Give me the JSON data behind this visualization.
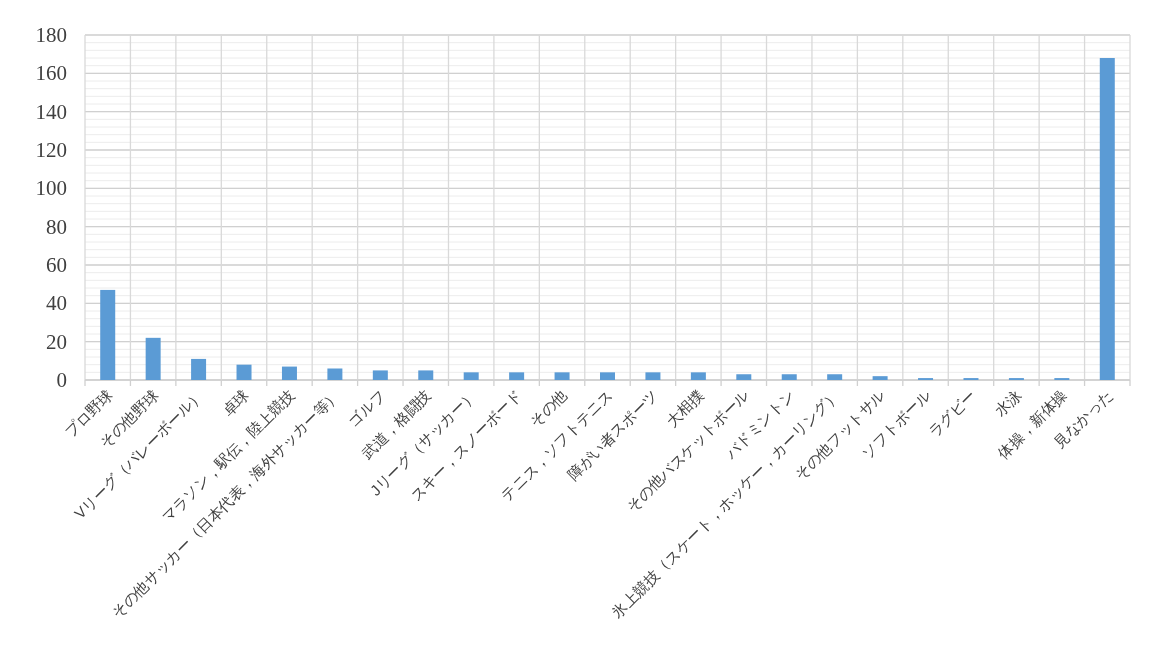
{
  "chart_data": {
    "type": "bar",
    "categories": [
      "プロ野球",
      "その他野球",
      "Vリーグ（バレーボール）",
      "卓球",
      "マラソン，駅伝，陸上競技",
      "その他サッカー（日本代表，海外サッカー等）",
      "ゴルフ",
      "武道，格闘技",
      "Jリーグ（サッカー）",
      "スキー，スノーボード",
      "その他",
      "テニス，ソフトテニス",
      "障がい者スポーツ",
      "大相撲",
      "その他バスケットボール",
      "バドミントン",
      "氷上競技（スケート，ホッケー，カーリング）",
      "その他フットサル",
      "ソフトボール",
      "ラグビー",
      "水泳",
      "体操，新体操",
      "見なかった"
    ],
    "values": [
      47,
      22,
      11,
      8,
      7,
      6,
      5,
      5,
      4,
      4,
      4,
      4,
      4,
      4,
      3,
      3,
      3,
      2,
      1,
      1,
      1,
      1,
      168
    ],
    "color": "#5b9bd5",
    "ylim": [
      0,
      180
    ],
    "yticks": [
      0,
      20,
      40,
      60,
      80,
      100,
      120,
      140,
      160,
      180
    ],
    "grid": true
  }
}
